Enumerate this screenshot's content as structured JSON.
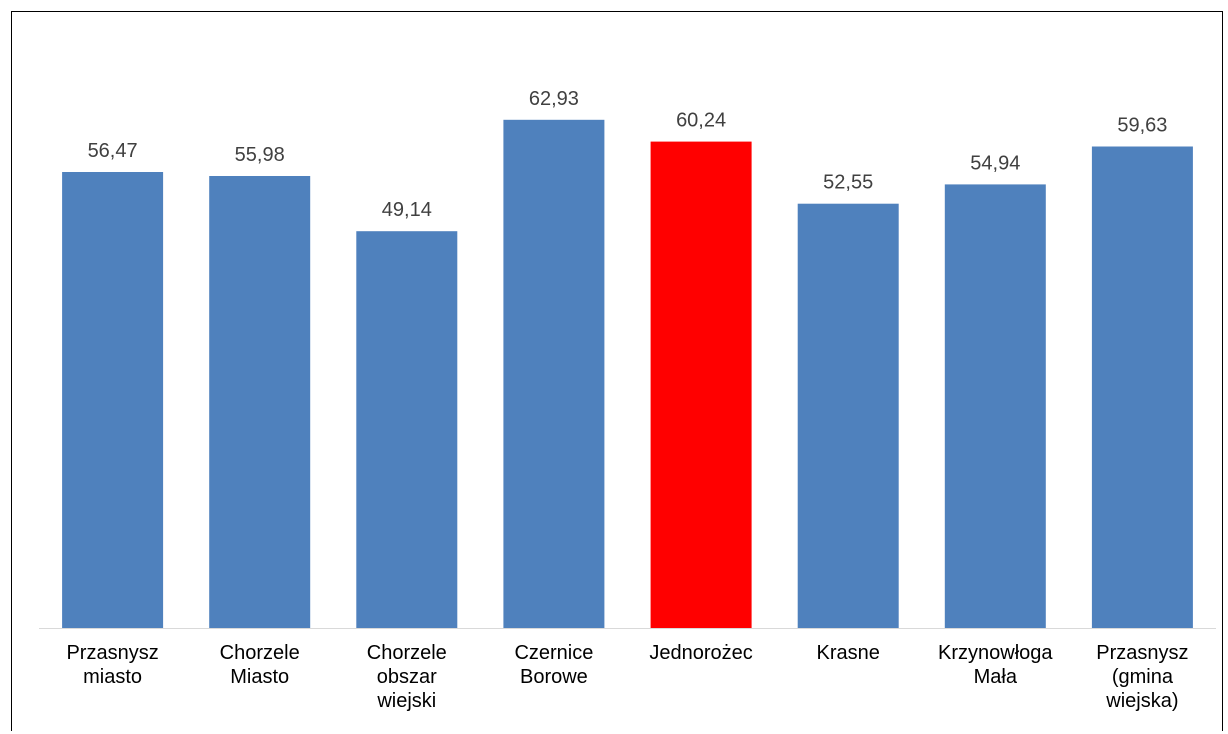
{
  "chart_data": {
    "type": "bar",
    "title": "",
    "xlabel": "",
    "ylabel": "",
    "categories": [
      [
        "Przasnysz",
        "miasto"
      ],
      [
        "Chorzele",
        "Miasto"
      ],
      [
        "Chorzele",
        "obszar",
        "wiejski"
      ],
      [
        "Czernice",
        "Borowe"
      ],
      [
        "Jednorożec"
      ],
      [
        "Krasne"
      ],
      [
        "Krzynowłoga",
        "Mała"
      ],
      [
        "Przasnysz",
        "(gmina",
        "wiejska)"
      ]
    ],
    "values": [
      56.47,
      55.98,
      49.14,
      62.93,
      60.24,
      52.55,
      54.94,
      59.63
    ],
    "value_labels": [
      "56,47",
      "55,98",
      "49,14",
      "62,93",
      "60,24",
      "52,55",
      "54,94",
      "59,63"
    ],
    "highlight_index": 4,
    "colors": {
      "bar": "#4f81bd",
      "highlight": "#ff0000",
      "axis": "#d9d9d9"
    },
    "ylim": [
      0,
      70
    ],
    "grid": false,
    "legend": "none"
  }
}
